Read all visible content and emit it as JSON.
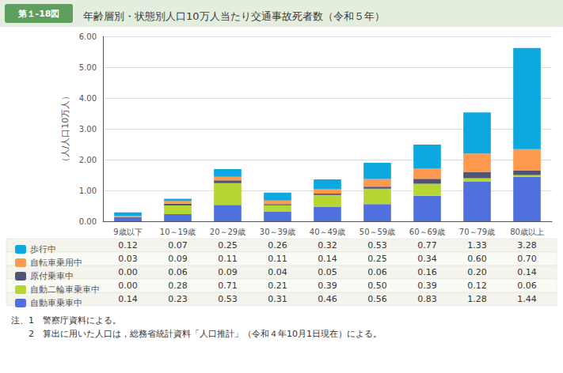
{
  "chart_data": {
    "type": "bar",
    "title": "年齢層別・状態別人口10万人当たり交通事故死者数（令和５年）",
    "ylabel": "（人/人口10万人）",
    "annotations": [
      "第１-18図",
      "注、1　警察庁資料による。",
      "　　2　算出に用いた人口は，総務省統計資料「人口推計」（令和４年10月1日現在）による。"
    ],
    "categories": [
      "9歳以下",
      "10～19歳",
      "20～29歳",
      "30～39歳",
      "40～49歳",
      "50～59歳",
      "60～69歳",
      "70～79歳",
      "80歳以上"
    ],
    "series": [
      {
        "name": "自動車乗車中",
        "values": [
          0.14,
          0.23,
          0.53,
          0.31,
          0.46,
          0.56,
          0.83,
          1.28,
          1.44
        ],
        "value_labels": [
          "0.14",
          "0.23",
          "0.53",
          "0.31",
          "0.46",
          "0.56",
          "0.83",
          "1.28",
          "1.44"
        ]
      },
      {
        "name": "自動二輪車乗車中",
        "values": [
          0,
          0.28,
          0.71,
          0.21,
          0.39,
          0.5,
          0.39,
          0.12,
          0.06
        ],
        "value_labels": [
          "0.00",
          "0.28",
          "0.71",
          "0.21",
          "0.39",
          "0.50",
          "0.39",
          "0.12",
          "0.06"
        ]
      },
      {
        "name": "原付乗車中",
        "values": [
          0,
          0.06,
          0.09,
          0.04,
          0.05,
          0.06,
          0.16,
          0.2,
          0.14
        ],
        "value_labels": [
          "0.00",
          "0.06",
          "0.09",
          "0.04",
          "0.05",
          "0.06",
          "0.16",
          "0.20",
          "0.14"
        ]
      },
      {
        "name": "自転車乗用中",
        "values": [
          0.03,
          0.09,
          0.11,
          0.11,
          0.14,
          0.25,
          0.34,
          0.6,
          0.7
        ],
        "value_labels": [
          "0.03",
          "0.09",
          "0.11",
          "0.11",
          "0.14",
          "0.25",
          "0.34",
          "0.60",
          "0.70"
        ]
      },
      {
        "name": "歩行中",
        "values": [
          0.12,
          0.07,
          0.25,
          0.26,
          0.32,
          0.53,
          0.77,
          1.33,
          3.28
        ],
        "value_labels": [
          "0.12",
          "0.07",
          "0.25",
          "0.26",
          "0.32",
          "0.53",
          "0.77",
          "1.33",
          "3.28"
        ]
      }
    ],
    "stacked": true,
    "ylim": [
      0,
      6
    ],
    "yticks": [
      {
        "value": 0,
        "label": "0.00"
      },
      {
        "value": 1,
        "label": "1.00"
      },
      {
        "value": 2,
        "label": "2.00"
      },
      {
        "value": 3,
        "label": "3.00"
      },
      {
        "value": 4,
        "label": "4.00"
      },
      {
        "value": 5,
        "label": "5.00"
      },
      {
        "value": 6,
        "label": "6.00"
      }
    ],
    "grid": true,
    "legend": "bottom"
  }
}
